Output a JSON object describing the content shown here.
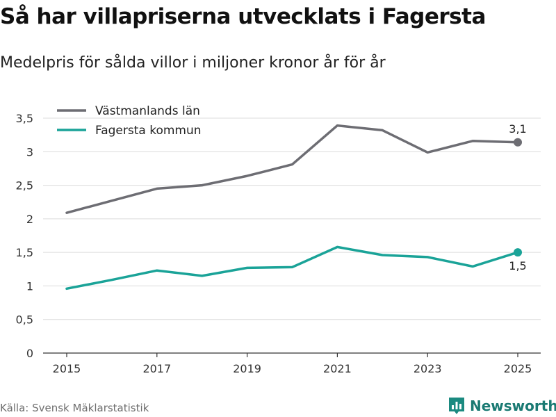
{
  "title": "Så har villapriserna utvecklats i Fagersta",
  "subtitle": "Medelpris för sålda villor i miljoner kronor år för år",
  "source": "Källa: Svensk Mäklarstatistik",
  "brand": {
    "name": "Newsworthy",
    "logo_icon": "bar-chart-logo-icon",
    "color": "#1b8a80"
  },
  "chart_data": {
    "type": "line",
    "x": [
      2015,
      2016,
      2017,
      2018,
      2019,
      2020,
      2021,
      2022,
      2023,
      2024,
      2025
    ],
    "x_tick_labels": [
      "2015",
      "2017",
      "2019",
      "2021",
      "2023",
      "2025"
    ],
    "y_tick_labels": [
      "0",
      "0,5",
      "1",
      "1,5",
      "2",
      "2,5",
      "3",
      "3,5"
    ],
    "y_ticks": [
      0,
      0.5,
      1,
      1.5,
      2,
      2.5,
      3,
      3.5
    ],
    "ylim": [
      0,
      3.5
    ],
    "xlim": [
      2015,
      2025
    ],
    "grid": true,
    "legend_position": "top-left",
    "series": [
      {
        "name": "Västmanlands län",
        "color": "#6d6d73",
        "values": [
          2.09,
          2.27,
          2.45,
          2.5,
          2.64,
          2.81,
          3.39,
          3.32,
          2.99,
          3.16,
          3.14
        ],
        "end_label": "3,1",
        "end_label_position": "above"
      },
      {
        "name": "Fagersta kommun",
        "color": "#1aa398",
        "values": [
          0.96,
          1.09,
          1.23,
          1.15,
          1.27,
          1.28,
          1.58,
          1.46,
          1.43,
          1.29,
          1.5
        ],
        "end_label": "1,5",
        "end_label_position": "below"
      }
    ]
  }
}
